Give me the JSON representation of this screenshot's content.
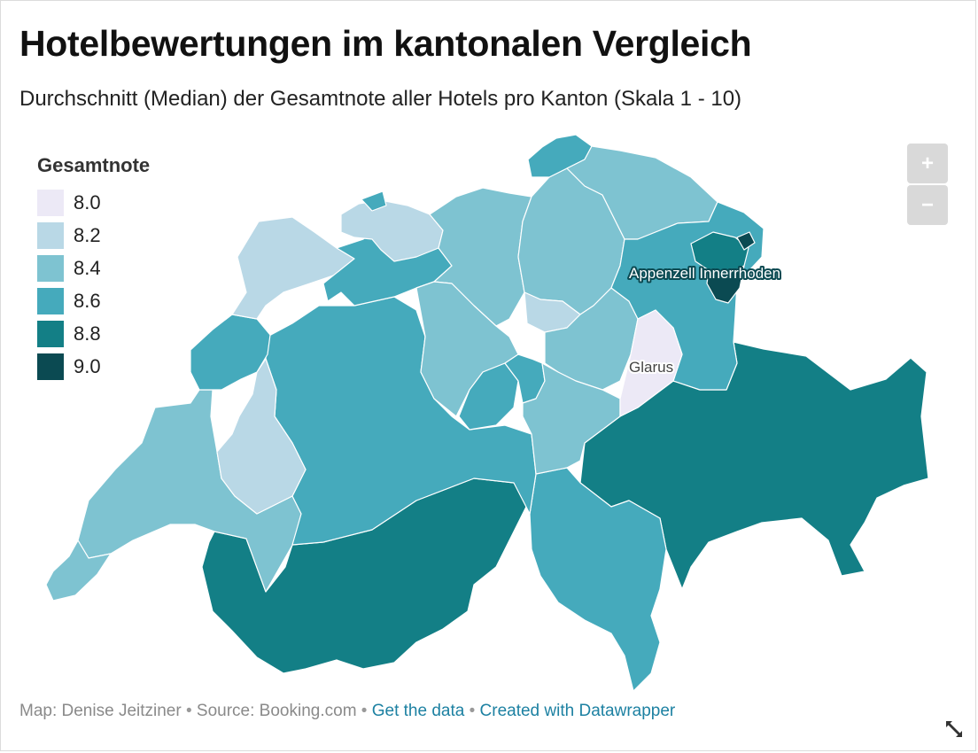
{
  "header": {
    "title": "Hotelbewertungen im kantonalen Vergleich",
    "subtitle": "Durchschnitt (Median) der Gesamtnote aller Hotels pro Kanton (Skala 1 - 10)"
  },
  "legend": {
    "title": "Gesamtnote",
    "items": [
      {
        "label": "8.0",
        "color": "#ece9f6"
      },
      {
        "label": "8.2",
        "color": "#b9d8e6"
      },
      {
        "label": "8.4",
        "color": "#7ec3d1"
      },
      {
        "label": "8.6",
        "color": "#45aabc"
      },
      {
        "label": "8.8",
        "color": "#137f86"
      },
      {
        "label": "9.0",
        "color": "#0b4a52"
      }
    ]
  },
  "map": {
    "labels": {
      "appenzell_innerrhoden": "Appenzell Innerrhoden",
      "glarus": "Glarus"
    },
    "regions": [
      {
        "id": "graubuenden",
        "value": 8.8
      },
      {
        "id": "wallis",
        "value": 8.8
      },
      {
        "id": "bern",
        "value": 8.6
      },
      {
        "id": "tessin",
        "value": 8.6
      },
      {
        "id": "waadt",
        "value": 8.4
      },
      {
        "id": "zuerich",
        "value": 8.4
      },
      {
        "id": "st_gallen",
        "value": 8.6
      },
      {
        "id": "appenzell_innerrhoden",
        "value": 9.0
      },
      {
        "id": "glarus",
        "value": 8.0
      },
      {
        "id": "uri",
        "value": 8.4
      },
      {
        "id": "schwyz",
        "value": 8.4
      },
      {
        "id": "zug",
        "value": 8.2
      },
      {
        "id": "luzern",
        "value": 8.4
      },
      {
        "id": "obwalden",
        "value": 8.6
      },
      {
        "id": "nidwalden",
        "value": 8.6
      },
      {
        "id": "aargau",
        "value": 8.4
      },
      {
        "id": "basel_landschaft",
        "value": 8.2
      },
      {
        "id": "basel_stadt",
        "value": 8.6
      },
      {
        "id": "solothurn",
        "value": 8.6
      },
      {
        "id": "jura",
        "value": 8.2
      },
      {
        "id": "neuenburg",
        "value": 8.6
      },
      {
        "id": "freiburg",
        "value": 8.2
      },
      {
        "id": "genf",
        "value": 8.4
      },
      {
        "id": "schaffhausen",
        "value": 8.6
      },
      {
        "id": "thurgau",
        "value": 8.4
      },
      {
        "id": "appenzell_ausserrhoden",
        "value": 8.8
      }
    ]
  },
  "controls": {
    "zoom_in": "+",
    "zoom_out": "−"
  },
  "footer": {
    "credit": "Map: Denise Jeitziner",
    "source": "Source: Booking.com",
    "get_data": "Get the data",
    "created_with": "Created with Datawrapper",
    "separator": "•"
  }
}
